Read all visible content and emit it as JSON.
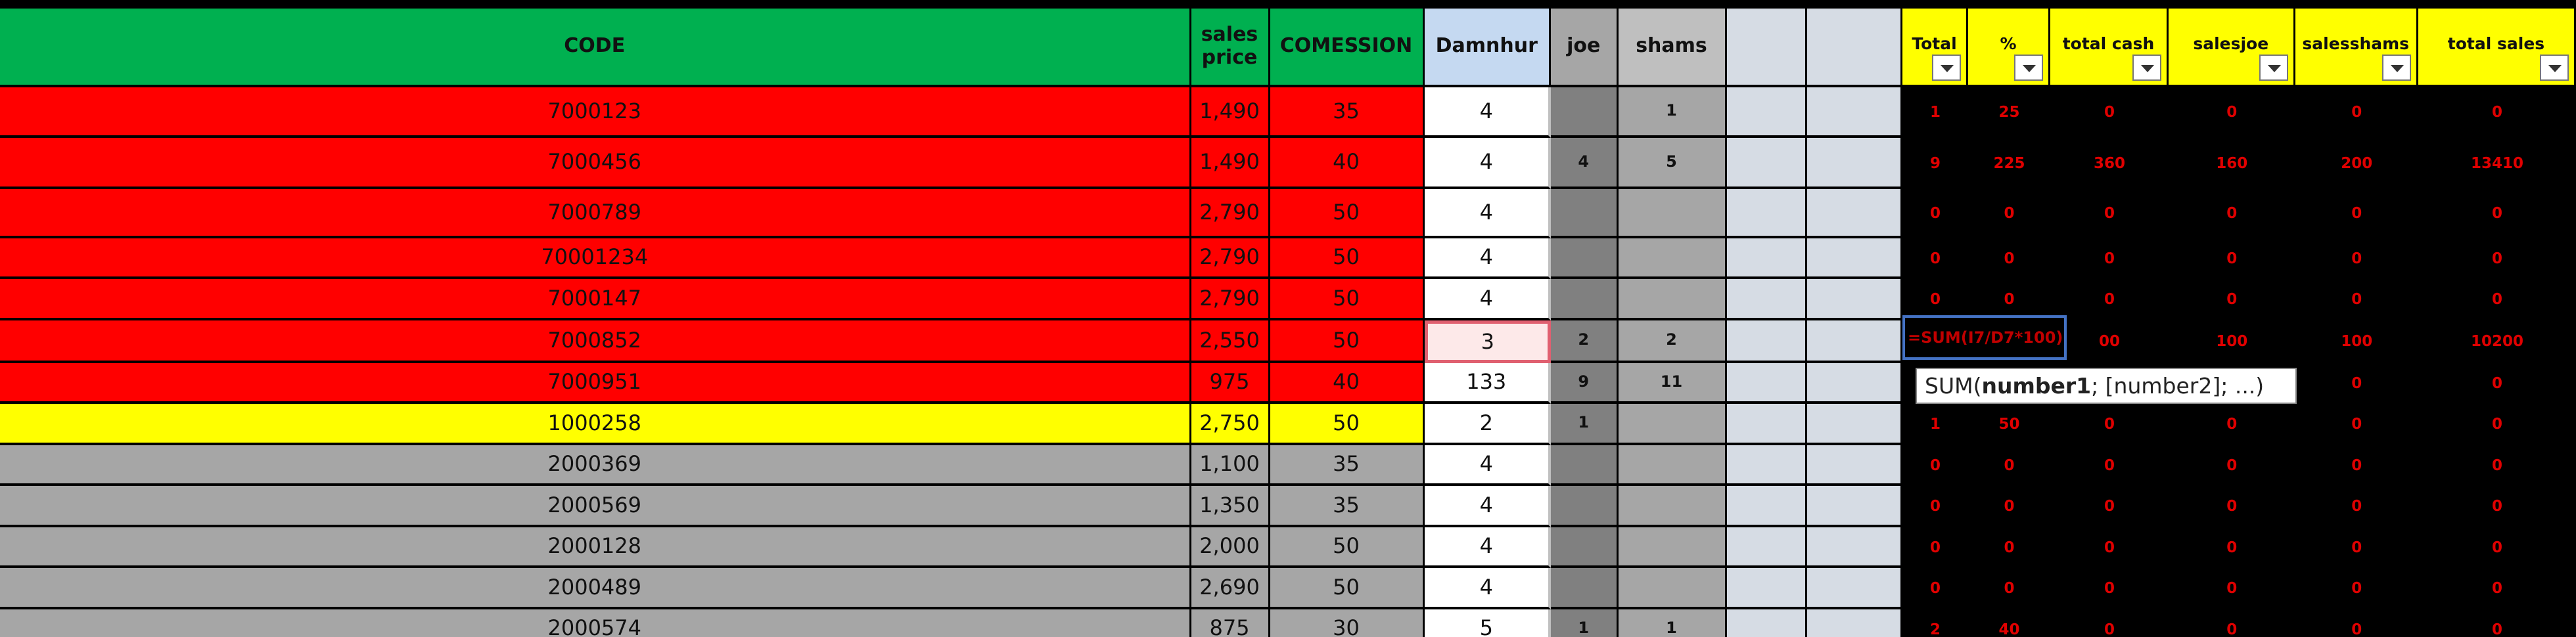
{
  "table": {
    "columns": [
      "CODE",
      "sales price",
      "COMESSION",
      "Damnhur",
      "joe",
      "shams",
      null,
      null,
      "Total",
      "%",
      "total cash",
      "salesjoe",
      "salesshams",
      "total sales"
    ],
    "rows": [
      [
        "7000123",
        "1,490",
        "35",
        "4",
        null,
        "1",
        null,
        null,
        "1",
        "25",
        "0",
        "0",
        "0",
        "0"
      ],
      [
        "7000456",
        "1,490",
        "40",
        "4",
        "4",
        "5",
        null,
        null,
        "9",
        "225",
        "360",
        "160",
        "200",
        "13410"
      ],
      [
        "7000789",
        "2,790",
        "50",
        "4",
        null,
        null,
        null,
        null,
        "0",
        "0",
        "0",
        "0",
        "0",
        "0"
      ],
      [
        "70001234",
        "2,790",
        "50",
        "4",
        null,
        null,
        null,
        null,
        "0",
        "0",
        "0",
        "0",
        "0",
        "0"
      ],
      [
        "7000147",
        "2,790",
        "50",
        "4",
        null,
        null,
        null,
        null,
        "0",
        "0",
        "0",
        "0",
        "0",
        "0"
      ],
      [
        "7000852",
        "2,550",
        "50",
        "3",
        "2",
        "2",
        null,
        null,
        null,
        null,
        "00",
        "100",
        "100",
        "10200"
      ],
      [
        "7000951",
        "975",
        "40",
        "133",
        "9",
        "11",
        null,
        null,
        null,
        null,
        null,
        null,
        "0",
        "0"
      ],
      [
        "1000258",
        "2,750",
        "50",
        "2",
        "1",
        null,
        null,
        null,
        "1",
        "50",
        "0",
        "0",
        "0",
        "0"
      ],
      [
        "2000369",
        "1,100",
        "35",
        "4",
        null,
        null,
        null,
        null,
        "0",
        "0",
        "0",
        "0",
        "0",
        "0"
      ],
      [
        "2000569",
        "1,350",
        "35",
        "4",
        null,
        null,
        null,
        null,
        "0",
        "0",
        "0",
        "0",
        "0",
        "0"
      ],
      [
        "2000128",
        "2,000",
        "50",
        "4",
        null,
        null,
        null,
        null,
        "0",
        "0",
        "0",
        "0",
        "0",
        "0"
      ],
      [
        "2000489",
        "2,690",
        "50",
        "4",
        null,
        null,
        null,
        null,
        "0",
        "0",
        "0",
        "0",
        "0",
        "0"
      ],
      [
        "2000574",
        "875",
        "30",
        "5",
        "1",
        "1",
        null,
        null,
        "2",
        "40",
        "0",
        "0",
        "0",
        "0"
      ]
    ]
  },
  "formula": "=SUM(I7/D7*100)",
  "tooltip": {
    "prefix": "SUM(",
    "bold": "number1",
    "suffix": "; [number2]; ...)"
  }
}
